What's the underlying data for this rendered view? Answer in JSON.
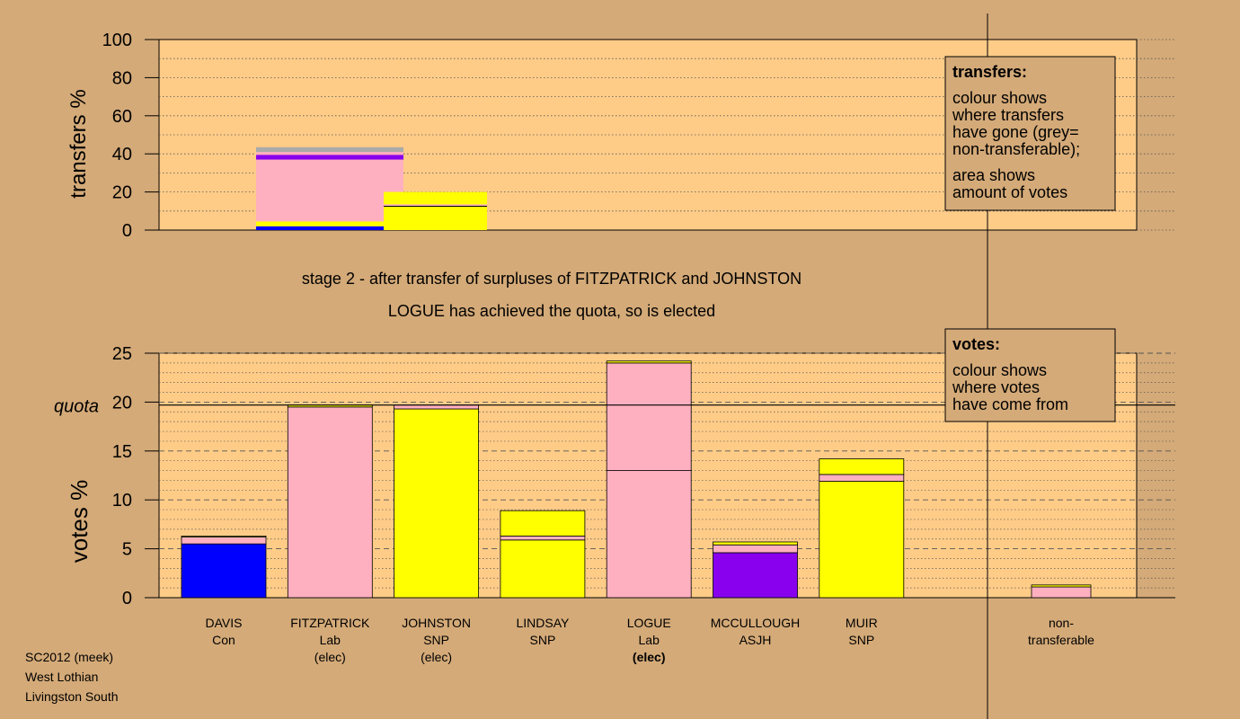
{
  "colors": {
    "background": "#d4aa78",
    "plot": "#ffcc88",
    "Con": "#0000ff",
    "Lab": "#ffb0c0",
    "SNP": "#ffff00",
    "ASJH": "#8800ee",
    "nontransferable": "#aaaaaa"
  },
  "stage_title": "stage 2 - after transfer of surpluses of FITZPATRICK and JOHNSTON",
  "stage_subtitle": "LOGUE has achieved the quota, so is elected",
  "legend_transfers": {
    "heading": "transfers:",
    "lines1": [
      "colour shows",
      "where transfers",
      "have gone (grey=",
      "non-transferable);"
    ],
    "lines2": [
      "area shows",
      "amount of votes"
    ]
  },
  "legend_votes": {
    "heading": "votes:",
    "lines": [
      "colour shows",
      "where votes",
      "have come from"
    ]
  },
  "footer": [
    "SC2012 (meek)",
    "West Lothian",
    "Livingston South"
  ],
  "chart_data": [
    {
      "type": "bar",
      "ylabel": "transfers %",
      "ylim": [
        0,
        100
      ],
      "yticks": [
        0,
        20,
        40,
        60,
        80,
        100
      ],
      "bars": [
        {
          "source": "FITZPATRICK",
          "segments": [
            {
              "party": "Con",
              "from": 0,
              "to": 2
            },
            {
              "party": "SNP",
              "from": 2,
              "to": 4.5
            },
            {
              "party": "Lab",
              "from": 4.5,
              "to": 37
            },
            {
              "party": "ASJH",
              "from": 37,
              "to": 39.5
            },
            {
              "party": "Lab",
              "from": 39.5,
              "to": 41
            },
            {
              "party": "nontransferable",
              "from": 41,
              "to": 43.5
            }
          ]
        },
        {
          "source": "JOHNSTON",
          "segments": [
            {
              "party": "SNP",
              "from": 0,
              "to": 12.5
            },
            {
              "party": "Lab",
              "from": 12.5,
              "to": 13.5
            },
            {
              "party": "SNP",
              "from": 13.5,
              "to": 20
            }
          ]
        }
      ]
    },
    {
      "type": "bar",
      "ylabel": "votes %",
      "ylim": [
        0,
        25
      ],
      "yticks": [
        0,
        5,
        10,
        15,
        20,
        25
      ],
      "quota": 19.7,
      "quota_label": "quota",
      "candidates": [
        {
          "name": "DAVIS",
          "party": "Con",
          "status": "",
          "segments": [
            {
              "party": "Con",
              "value": 5.5
            },
            {
              "party": "Lab",
              "value": 0.7
            },
            {
              "party": "SNP",
              "value": 0.1
            }
          ]
        },
        {
          "name": "FITZPATRICK",
          "party": "Lab",
          "status": "(elec)",
          "segments": [
            {
              "party": "Lab",
              "value": 19.5
            },
            {
              "party": "SNP",
              "value": 0.2
            }
          ]
        },
        {
          "name": "JOHNSTON",
          "party": "SNP",
          "status": "(elec)",
          "segments": [
            {
              "party": "SNP",
              "value": 19.3
            },
            {
              "party": "Lab",
              "value": 0.4
            }
          ]
        },
        {
          "name": "LINDSAY",
          "party": "SNP",
          "status": "",
          "segments": [
            {
              "party": "SNP",
              "value": 5.9
            },
            {
              "party": "Lab",
              "value": 0.4
            },
            {
              "party": "SNP",
              "value": 2.6
            }
          ]
        },
        {
          "name": "LOGUE",
          "party": "Lab",
          "status": "(elec)",
          "status_bold": true,
          "segments": [
            {
              "party": "Lab",
              "value": 13.0
            },
            {
              "party": "Lab",
              "value": 11.0
            },
            {
              "party": "SNP",
              "value": 0.2
            }
          ]
        },
        {
          "name": "MCCULLOUGH",
          "party": "ASJH",
          "status": "",
          "segments": [
            {
              "party": "ASJH",
              "value": 4.6
            },
            {
              "party": "Lab",
              "value": 0.8
            },
            {
              "party": "SNP",
              "value": 0.3
            }
          ]
        },
        {
          "name": "MUIR",
          "party": "SNP",
          "status": "",
          "segments": [
            {
              "party": "SNP",
              "value": 11.9
            },
            {
              "party": "Lab",
              "value": 0.7
            },
            {
              "party": "SNP",
              "value": 1.6
            }
          ]
        }
      ],
      "nontransferable": {
        "label1": "non-",
        "label2": "transferable",
        "segments": [
          {
            "party": "Lab",
            "value": 1.1
          },
          {
            "party": "SNP",
            "value": 0.2
          }
        ]
      }
    }
  ]
}
